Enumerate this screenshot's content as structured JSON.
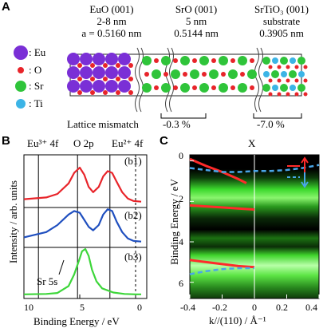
{
  "panel_a": {
    "letter": "A",
    "layers": [
      {
        "name": "EuO (001)",
        "thickness": "2-8 nm",
        "lattice": "a = 0.5160 nm"
      },
      {
        "name": "SrO (001)",
        "thickness": "5 nm",
        "lattice": "0.5144 nm"
      },
      {
        "name": "SrTiO₃ (001)",
        "thickness": "substrate",
        "lattice": "0.3905 nm"
      }
    ],
    "legend": [
      {
        "label": ": Eu",
        "color": "#7a2fd6"
      },
      {
        "label": ": O",
        "color": "#e8242a"
      },
      {
        "label": ": Sr",
        "color": "#2fc43a"
      },
      {
        "label": ": Ti",
        "color": "#3cb4e6"
      }
    ],
    "mismatch_label": "Lattice mismatch",
    "mismatch_values": [
      "-0.3 %",
      "-7.0 %"
    ]
  },
  "panel_b": {
    "letter": "B",
    "ylabel": "Intensity / arb. units",
    "xlabel": "Binding Energy / eV",
    "xticks": [
      "10",
      "5",
      "0"
    ],
    "top_labels": [
      "Eu³⁺ 4f",
      "O 2p",
      "Eu²⁺ 4f"
    ],
    "curve_labels": [
      "(b1)",
      "(b2)",
      "(b3)"
    ],
    "peak_label": "Sr 5s"
  },
  "panel_c": {
    "letter": "C",
    "top_label": "X",
    "ylabel": "Binding Energy / eV",
    "xlabel": "k//(110) / Å⁻¹",
    "yticks": [
      "0",
      "2",
      "4",
      "6"
    ],
    "xticks": [
      "-0.4",
      "-0.2",
      "0",
      "0.2",
      "0.4"
    ]
  },
  "chart_data": [
    {
      "type": "line",
      "xlabel": "Binding Energy / eV",
      "ylabel": "Intensity / arb. units",
      "xlim": [
        10,
        -1
      ],
      "series": [
        {
          "name": "(b1)",
          "color": "#e8242a",
          "x": [
            10,
            8,
            7,
            6,
            5.5,
            5,
            4.6,
            4.2,
            3.8,
            3.3,
            2.9,
            2.5,
            2.1,
            1.7,
            1.2,
            0.7,
            0.2,
            -0.5
          ],
          "y": [
            0.1,
            0.15,
            0.25,
            0.55,
            0.85,
            1.0,
            0.8,
            0.45,
            0.3,
            0.45,
            0.75,
            0.9,
            0.85,
            0.6,
            0.3,
            0.12,
            0.05,
            0.03
          ]
        },
        {
          "name": "(b2)",
          "color": "#1f4fbf",
          "x": [
            10,
            8,
            7,
            6,
            5.5,
            5,
            4.6,
            4.2,
            3.8,
            3.3,
            2.9,
            2.5,
            2.1,
            1.7,
            1.2,
            0.7,
            0.2,
            -0.5
          ],
          "y": [
            0.15,
            0.3,
            0.5,
            0.8,
            0.9,
            0.85,
            0.65,
            0.45,
            0.35,
            0.5,
            0.8,
            0.95,
            0.9,
            0.6,
            0.3,
            0.12,
            0.05,
            0.03
          ]
        },
        {
          "name": "(b3)",
          "color": "#3dd63a",
          "x": [
            10,
            8,
            7,
            6,
            5.5,
            5,
            4.8,
            4.5,
            4.2,
            3.9,
            3.5,
            3,
            2,
            1,
            0,
            -0.5
          ],
          "y": [
            0.02,
            0.03,
            0.05,
            0.2,
            0.45,
            0.8,
            0.95,
            1.0,
            0.85,
            0.55,
            0.3,
            0.15,
            0.06,
            0.03,
            0.02,
            0.02
          ]
        }
      ],
      "vlines_eV": [
        8.7,
        5.2,
        2.3,
        0
      ]
    },
    {
      "type": "heatmap",
      "xlabel": "k//(110) / Å⁻¹",
      "ylabel": "Binding Energy / eV",
      "xlim": [
        -0.4,
        0.4
      ],
      "ylim": [
        6.8,
        -0.3
      ],
      "bright_bands_eV": [
        2.3,
        4.2,
        5.3
      ],
      "red_dispersions": [
        {
          "k": [
            -0.4,
            -0.3,
            -0.2,
            -0.1,
            -0.05
          ],
          "E": [
            -0.1,
            0.25,
            0.55,
            0.9,
            1.1
          ]
        },
        {
          "k": [
            -0.4,
            -0.3,
            -0.2,
            -0.1,
            0
          ],
          "E": [
            2.2,
            2.25,
            2.3,
            2.35,
            2.4
          ]
        },
        {
          "k": [
            -0.4,
            -0.3,
            -0.2,
            -0.1,
            0
          ],
          "E": [
            4.9,
            5.0,
            5.1,
            5.2,
            5.25
          ]
        }
      ],
      "blue_dispersions": [
        {
          "k": [
            -0.4,
            -0.3,
            -0.2,
            -0.1,
            0,
            0.1,
            0.2,
            0.3,
            0.4
          ],
          "E": [
            0.35,
            0.45,
            0.55,
            0.55,
            0.5,
            0.5,
            0.45,
            0.35,
            0.2
          ]
        },
        {
          "k": [
            -0.4,
            -0.3,
            -0.2,
            -0.1,
            0
          ],
          "E": [
            5.6,
            5.45,
            5.35,
            5.3,
            5.3
          ]
        }
      ]
    }
  ]
}
